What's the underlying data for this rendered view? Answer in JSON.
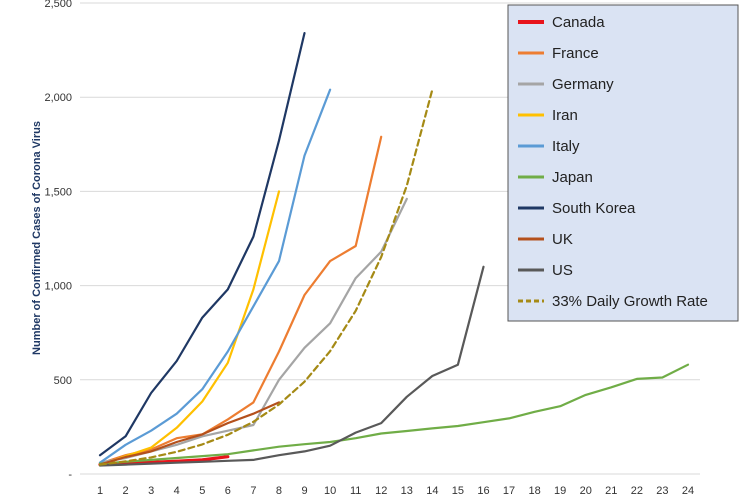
{
  "chart_data": {
    "type": "line",
    "title": "",
    "xlabel": "",
    "ylabel": "Number of Confirmed Cases of Corona Virus",
    "x": [
      1,
      2,
      3,
      4,
      5,
      6,
      7,
      8,
      9,
      10,
      11,
      12,
      13,
      14,
      15,
      16,
      17,
      18,
      19,
      20,
      21,
      22,
      23,
      24
    ],
    "xlim": [
      1,
      24
    ],
    "ylim": [
      0,
      2500
    ],
    "y_ticks": [
      0,
      500,
      1000,
      1500,
      2000,
      2500
    ],
    "y_tick_labels": [
      "-",
      "500",
      "1,000",
      "1,500",
      "2,000",
      "2,500"
    ],
    "grid": "horizontal",
    "legend_position": "top-right",
    "series": [
      {
        "name": "Canada",
        "color": "#e8141b",
        "dashed": false,
        "x": [
          1,
          2,
          3,
          4,
          5,
          6
        ],
        "values": [
          50,
          55,
          62,
          68,
          75,
          92
        ]
      },
      {
        "name": "France",
        "color": "#ed7d31",
        "dashed": false,
        "x": [
          1,
          2,
          3,
          4,
          5,
          6,
          7,
          8,
          9,
          10,
          11,
          12
        ],
        "values": [
          55,
          100,
          130,
          190,
          210,
          290,
          380,
          650,
          950,
          1130,
          1210,
          1790
        ]
      },
      {
        "name": "Germany",
        "color": "#a5a5a5",
        "dashed": false,
        "x": [
          1,
          2,
          3,
          4,
          5,
          6,
          7,
          8,
          9,
          10,
          11,
          12,
          13
        ],
        "values": [
          60,
          85,
          120,
          155,
          200,
          230,
          260,
          500,
          670,
          800,
          1040,
          1180,
          1460
        ]
      },
      {
        "name": "Iran",
        "color": "#ffc000",
        "dashed": false,
        "x": [
          1,
          2,
          3,
          4,
          5,
          6,
          7,
          8
        ],
        "values": [
          45,
          95,
          140,
          245,
          385,
          590,
          980,
          1500
        ]
      },
      {
        "name": "Italy",
        "color": "#5b9bd5",
        "dashed": false,
        "x": [
          1,
          2,
          3,
          4,
          5,
          6,
          7,
          8,
          9,
          10
        ],
        "values": [
          60,
          155,
          230,
          320,
          450,
          650,
          890,
          1130,
          1690,
          2040
        ]
      },
      {
        "name": "Japan",
        "color": "#70ad47",
        "dashed": false,
        "x": [
          1,
          2,
          3,
          4,
          5,
          6,
          7,
          8,
          9,
          10,
          11,
          12,
          13,
          14,
          15,
          16,
          17,
          18,
          19,
          20,
          21,
          22,
          23,
          24
        ],
        "values": [
          55,
          65,
          75,
          85,
          95,
          105,
          125,
          145,
          158,
          170,
          190,
          215,
          228,
          242,
          255,
          275,
          295,
          330,
          360,
          420,
          460,
          505,
          512,
          580
        ]
      },
      {
        "name": "South Korea",
        "color": "#1f3864",
        "dashed": false,
        "x": [
          1,
          2,
          3,
          4,
          5,
          6,
          7,
          8,
          9
        ],
        "values": [
          100,
          200,
          430,
          600,
          830,
          980,
          1260,
          1770,
          2340
        ]
      },
      {
        "name": "UK",
        "color": "#b4501c",
        "dashed": false,
        "x": [
          1,
          2,
          3,
          4,
          5,
          6,
          7,
          8
        ],
        "values": [
          50,
          90,
          120,
          170,
          210,
          270,
          320,
          380
        ]
      },
      {
        "name": "US",
        "color": "#595959",
        "dashed": false,
        "x": [
          1,
          2,
          3,
          4,
          5,
          6,
          7,
          8,
          9,
          10,
          11,
          12,
          13,
          14,
          15,
          16
        ],
        "values": [
          45,
          50,
          55,
          60,
          65,
          70,
          75,
          100,
          120,
          150,
          220,
          270,
          410,
          520,
          580,
          1100
        ]
      },
      {
        "name": "33% Daily Growth Rate",
        "color": "#a58a15",
        "dashed": true,
        "x": [
          1,
          2,
          3,
          4,
          5,
          6,
          7,
          8,
          9,
          10,
          11,
          12,
          13,
          14
        ],
        "values": [
          50,
          67,
          88,
          118,
          157,
          208,
          277,
          369,
          490,
          652,
          866,
          1152,
          1530,
          2040
        ]
      }
    ]
  }
}
